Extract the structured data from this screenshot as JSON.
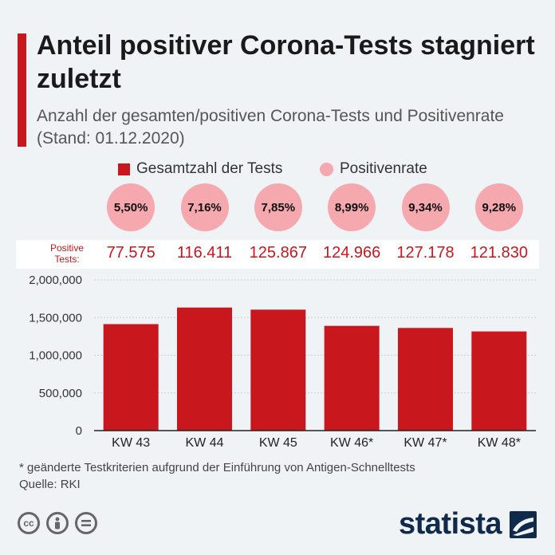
{
  "title": "Anteil positiver Corona-Tests stagniert zuletzt",
  "subtitle": "Anzahl der gesamten/positiven Corona-Tests und Positivenrate (Stand: 01.12.2020)",
  "legend": {
    "total": "Gesamtzahl der Tests",
    "rate": "Positivenrate"
  },
  "positive_label": "Positive Tests:",
  "colors": {
    "bar": "#c8171d",
    "bubble": "#f5a8ae",
    "accent": "#c8171d",
    "brand": "#0f2a4a"
  },
  "chart_data": {
    "type": "bar",
    "categories": [
      "KW 43",
      "KW 44",
      "KW 45",
      "KW 46*",
      "KW 47*",
      "KW 48*"
    ],
    "series": [
      {
        "name": "Gesamtzahl der Tests",
        "values": [
          1413000,
          1633000,
          1605000,
          1390000,
          1362000,
          1316000
        ]
      }
    ],
    "positivity_rate": [
      "5,50%",
      "7,16%",
      "7,85%",
      "8,99%",
      "9,34%",
      "9,28%"
    ],
    "positive_tests": [
      "77.575",
      "116.411",
      "125.867",
      "124.966",
      "127.178",
      "121.830"
    ],
    "y_ticks": [
      "2,000,000",
      "1,500,000",
      "1,000,000",
      "500,000",
      "0"
    ],
    "ylim": [
      0,
      2000000
    ],
    "grid": true,
    "xlabel": "",
    "ylabel": ""
  },
  "footnote": "* geänderte Testkriterien aufgrund der Einführung von Antigen-Schnelltests",
  "source": "Quelle: RKI",
  "brand": "statista",
  "license_icons": [
    "cc-icon",
    "by-icon",
    "nd-icon"
  ]
}
